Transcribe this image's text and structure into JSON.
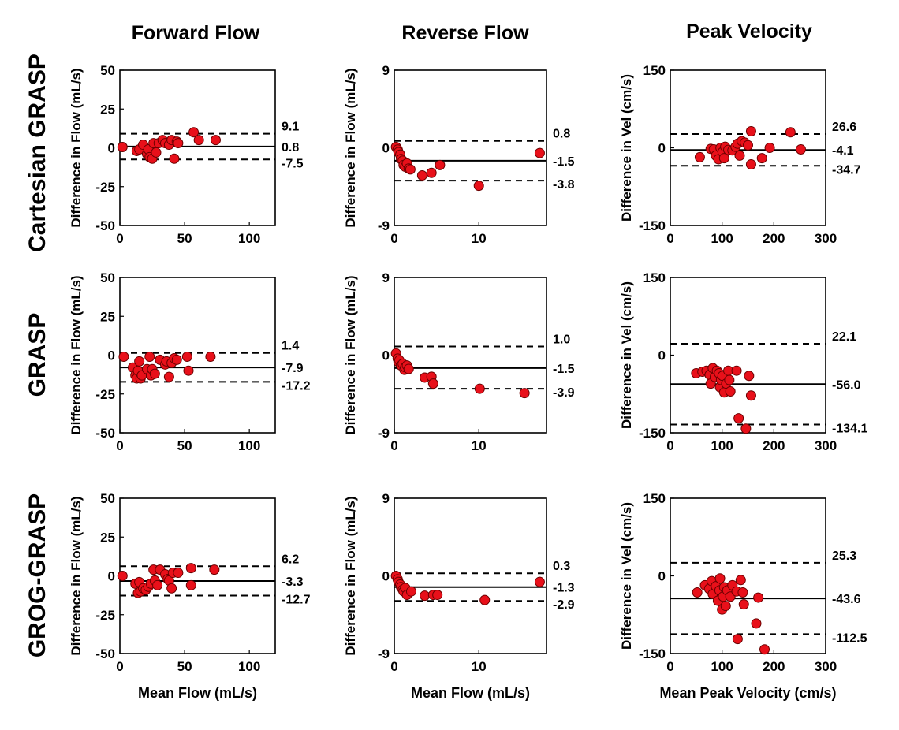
{
  "figure": {
    "column_titles": [
      "Forward Flow",
      "Reverse Flow",
      "Peak Velocity"
    ],
    "row_labels": [
      "Cartesian GRASP",
      "GRASP",
      "GROG-GRASP"
    ],
    "marker_color": "#e8101a",
    "marker_edge_color": "#6b0000"
  },
  "chart_data": [
    {
      "type": "scatter",
      "row": 0,
      "col": 0,
      "xlabel": "",
      "ylabel": "Difference in Flow (mL/s)",
      "xlim": [
        0,
        120
      ],
      "ylim": [
        -50,
        50
      ],
      "xticks": [
        0,
        50,
        100
      ],
      "yticks": [
        50,
        25,
        0,
        -25,
        -50
      ],
      "mean": 0.8,
      "upper": 9.1,
      "lower": -7.5,
      "labels": {
        "upper": "9.1",
        "mean": "0.8",
        "lower": "-7.5"
      },
      "points": [
        [
          2,
          0.5
        ],
        [
          13,
          -2
        ],
        [
          15,
          -1
        ],
        [
          18,
          2
        ],
        [
          21,
          -4
        ],
        [
          22,
          -1
        ],
        [
          23,
          -6
        ],
        [
          25,
          -7
        ],
        [
          26,
          3
        ],
        [
          28,
          -3
        ],
        [
          30,
          3
        ],
        [
          33,
          5
        ],
        [
          35,
          3
        ],
        [
          38,
          2
        ],
        [
          40,
          5
        ],
        [
          42,
          -7
        ],
        [
          44,
          4
        ],
        [
          45,
          3
        ],
        [
          57,
          10
        ],
        [
          61,
          5
        ],
        [
          74,
          5
        ]
      ]
    },
    {
      "type": "scatter",
      "row": 0,
      "col": 1,
      "xlabel": "",
      "ylabel": "Difference in Flow (mL/s)",
      "xlim": [
        0,
        18
      ],
      "ylim": [
        -9,
        9
      ],
      "xticks": [
        0,
        10
      ],
      "yticks": [
        9,
        0,
        -9
      ],
      "mean": -1.5,
      "upper": 0.8,
      "lower": -3.8,
      "labels": {
        "upper": "0.8",
        "mean": "-1.5",
        "lower": "-3.8"
      },
      "points": [
        [
          0.2,
          0.1
        ],
        [
          0.4,
          -0.2
        ],
        [
          0.5,
          -0.5
        ],
        [
          0.7,
          -0.8
        ],
        [
          0.8,
          -1.3
        ],
        [
          1.0,
          -1.5
        ],
        [
          1.1,
          -2.0
        ],
        [
          1.3,
          -2.2
        ],
        [
          1.5,
          -1.8
        ],
        [
          1.7,
          -2.4
        ],
        [
          1.9,
          -2.5
        ],
        [
          3.3,
          -3.2
        ],
        [
          4.4,
          -2.9
        ],
        [
          5.4,
          -2.0
        ],
        [
          10.0,
          -4.4
        ],
        [
          17.2,
          -0.6
        ]
      ]
    },
    {
      "type": "scatter",
      "row": 0,
      "col": 2,
      "xlabel": "",
      "ylabel": "Difference in Vel (cm/s)",
      "xlim": [
        0,
        300
      ],
      "ylim": [
        -150,
        150
      ],
      "xticks": [
        0,
        100,
        200,
        300
      ],
      "yticks": [
        150,
        0,
        -150
      ],
      "mean": -4.1,
      "upper": 26.6,
      "lower": -34.7,
      "labels": {
        "upper": "26.6",
        "mean": "-4.1",
        "lower": "-34.7"
      },
      "points": [
        [
          57,
          -18
        ],
        [
          78,
          -2
        ],
        [
          84,
          -3
        ],
        [
          88,
          -15
        ],
        [
          93,
          -22
        ],
        [
          97,
          0
        ],
        [
          101,
          -8
        ],
        [
          104,
          -20
        ],
        [
          106,
          2
        ],
        [
          112,
          -4
        ],
        [
          120,
          -5
        ],
        [
          126,
          2
        ],
        [
          130,
          8
        ],
        [
          134,
          -15
        ],
        [
          138,
          13
        ],
        [
          144,
          10
        ],
        [
          150,
          5
        ],
        [
          156,
          32
        ],
        [
          156,
          -32
        ],
        [
          177,
          -20
        ],
        [
          192,
          0
        ],
        [
          232,
          30
        ],
        [
          252,
          -3
        ]
      ]
    },
    {
      "type": "scatter",
      "row": 1,
      "col": 0,
      "xlabel": "",
      "ylabel": "Difference in Flow (mL/s)",
      "xlim": [
        0,
        120
      ],
      "ylim": [
        -50,
        50
      ],
      "xticks": [
        0,
        50,
        100
      ],
      "yticks": [
        50,
        25,
        0,
        -25,
        -50
      ],
      "mean": -7.9,
      "upper": 1.4,
      "lower": -17.2,
      "labels": {
        "upper": "1.4",
        "mean": "-7.9",
        "lower": "-17.2"
      },
      "points": [
        [
          3,
          -1
        ],
        [
          10,
          -8
        ],
        [
          12,
          -13
        ],
        [
          13,
          -15
        ],
        [
          14,
          -10
        ],
        [
          15,
          -4
        ],
        [
          16,
          -15
        ],
        [
          17,
          -13
        ],
        [
          21,
          -9
        ],
        [
          23,
          -1
        ],
        [
          24,
          -13
        ],
        [
          25,
          -9
        ],
        [
          27,
          -12
        ],
        [
          31,
          -3
        ],
        [
          35,
          -6
        ],
        [
          36,
          -4
        ],
        [
          38,
          -14
        ],
        [
          40,
          -5
        ],
        [
          42,
          -2
        ],
        [
          44,
          -3
        ],
        [
          52,
          -1
        ],
        [
          53,
          -10
        ],
        [
          70,
          -1
        ]
      ]
    },
    {
      "type": "scatter",
      "row": 1,
      "col": 1,
      "xlabel": "",
      "ylabel": "Difference in Flow (mL/s)",
      "xlim": [
        0,
        18
      ],
      "ylim": [
        -9,
        9
      ],
      "xticks": [
        0,
        10
      ],
      "yticks": [
        9,
        0,
        -9
      ],
      "mean": -1.5,
      "upper": 1.0,
      "lower": -3.9,
      "labels": {
        "upper": "1.0",
        "mean": "-1.5",
        "lower": "-3.9"
      },
      "points": [
        [
          0.2,
          0.2
        ],
        [
          0.4,
          -0.4
        ],
        [
          0.5,
          -0.8
        ],
        [
          0.6,
          -0.6
        ],
        [
          0.8,
          -1.2
        ],
        [
          1.0,
          -1.0
        ],
        [
          1.2,
          -1.7
        ],
        [
          1.3,
          -1.4
        ],
        [
          1.5,
          -1.2
        ],
        [
          1.7,
          -1.6
        ],
        [
          3.6,
          -2.6
        ],
        [
          4.4,
          -2.5
        ],
        [
          4.6,
          -3.3
        ],
        [
          10.1,
          -3.9
        ],
        [
          15.4,
          -4.4
        ]
      ]
    },
    {
      "type": "scatter",
      "row": 1,
      "col": 2,
      "xlabel": "",
      "ylabel": "Difference in Vel (cm/s)",
      "xlim": [
        0,
        300
      ],
      "ylim": [
        -150,
        150
      ],
      "xticks": [
        0,
        100,
        200,
        300
      ],
      "yticks": [
        150,
        0,
        -150
      ],
      "mean": -56.0,
      "upper": 22.1,
      "lower": -134.1,
      "labels": {
        "upper": "22.1",
        "mean": "-56.0",
        "lower": "-134.1"
      },
      "points": [
        [
          50,
          -35
        ],
        [
          62,
          -32
        ],
        [
          70,
          -30
        ],
        [
          76,
          -38
        ],
        [
          78,
          -55
        ],
        [
          82,
          -25
        ],
        [
          86,
          -42
        ],
        [
          90,
          -30
        ],
        [
          94,
          -35
        ],
        [
          96,
          -62
        ],
        [
          98,
          -48
        ],
        [
          101,
          -40
        ],
        [
          104,
          -72
        ],
        [
          108,
          -55
        ],
        [
          112,
          -30
        ],
        [
          114,
          -48
        ],
        [
          116,
          -70
        ],
        [
          128,
          -30
        ],
        [
          132,
          -122
        ],
        [
          146,
          -142
        ],
        [
          152,
          -40
        ],
        [
          156,
          -78
        ]
      ]
    },
    {
      "type": "scatter",
      "row": 2,
      "col": 0,
      "xlabel": "Mean Flow (mL/s)",
      "ylabel": "Difference in Flow (mL/s)",
      "xlim": [
        0,
        120
      ],
      "ylim": [
        -50,
        50
      ],
      "xticks": [
        0,
        50,
        100
      ],
      "yticks": [
        50,
        25,
        0,
        -25,
        -50
      ],
      "mean": -3.3,
      "upper": 6.2,
      "lower": -12.7,
      "labels": {
        "upper": "6.2",
        "mean": "-3.3",
        "lower": "-12.7"
      },
      "points": [
        [
          2,
          0
        ],
        [
          12,
          -5
        ],
        [
          14,
          -11
        ],
        [
          15,
          -4
        ],
        [
          16,
          -10
        ],
        [
          18,
          -8
        ],
        [
          20,
          -9
        ],
        [
          22,
          -7
        ],
        [
          24,
          -5
        ],
        [
          26,
          4
        ],
        [
          27,
          -3
        ],
        [
          29,
          -6
        ],
        [
          31,
          4
        ],
        [
          35,
          1
        ],
        [
          37,
          -2
        ],
        [
          38,
          -3
        ],
        [
          40,
          -8
        ],
        [
          41,
          2
        ],
        [
          45,
          2
        ],
        [
          55,
          5
        ],
        [
          55,
          -6
        ],
        [
          73,
          4
        ]
      ]
    },
    {
      "type": "scatter",
      "row": 2,
      "col": 1,
      "xlabel": "Mean Flow (mL/s)",
      "ylabel": "Difference in Flow (mL/s)",
      "xlim": [
        0,
        18
      ],
      "ylim": [
        -9,
        9
      ],
      "xticks": [
        0,
        10
      ],
      "yticks": [
        9,
        0,
        -9
      ],
      "mean": -1.3,
      "upper": 0.3,
      "lower": -2.9,
      "labels": {
        "upper": "0.3",
        "mean": "-1.3",
        "lower": "-2.9"
      },
      "points": [
        [
          0.2,
          0.0
        ],
        [
          0.4,
          -0.4
        ],
        [
          0.5,
          -0.7
        ],
        [
          0.7,
          -1.0
        ],
        [
          0.8,
          -1.3
        ],
        [
          1.0,
          -1.6
        ],
        [
          1.1,
          -1.8
        ],
        [
          1.3,
          -1.4
        ],
        [
          1.5,
          -2.2
        ],
        [
          2.0,
          -1.8
        ],
        [
          3.6,
          -2.3
        ],
        [
          4.6,
          -2.2
        ],
        [
          5.1,
          -2.2
        ],
        [
          10.7,
          -2.8
        ],
        [
          17.2,
          -0.7
        ]
      ]
    },
    {
      "type": "scatter",
      "row": 2,
      "col": 2,
      "xlabel": "Mean Peak Velocity (cm/s)",
      "ylabel": "Difference in Vel (cm/s)",
      "xlim": [
        0,
        300
      ],
      "ylim": [
        -150,
        150
      ],
      "xticks": [
        0,
        100,
        200,
        300
      ],
      "yticks": [
        150,
        0,
        -150
      ],
      "mean": -43.6,
      "upper": 25.3,
      "lower": -112.5,
      "labels": {
        "upper": "25.3",
        "mean": "-43.6",
        "lower": "-112.5"
      },
      "points": [
        [
          52,
          -32
        ],
        [
          67,
          -18
        ],
        [
          75,
          -25
        ],
        [
          80,
          -10
        ],
        [
          82,
          -35
        ],
        [
          88,
          -20
        ],
        [
          92,
          -48
        ],
        [
          95,
          -28
        ],
        [
          96,
          -5
        ],
        [
          100,
          -65
        ],
        [
          102,
          -40
        ],
        [
          104,
          -22
        ],
        [
          107,
          -58
        ],
        [
          110,
          -28
        ],
        [
          116,
          -40
        ],
        [
          120,
          -18
        ],
        [
          128,
          -30
        ],
        [
          130,
          -122
        ],
        [
          136,
          -8
        ],
        [
          140,
          -32
        ],
        [
          142,
          -55
        ],
        [
          166,
          -92
        ],
        [
          170,
          -42
        ],
        [
          182,
          -142
        ]
      ]
    }
  ]
}
